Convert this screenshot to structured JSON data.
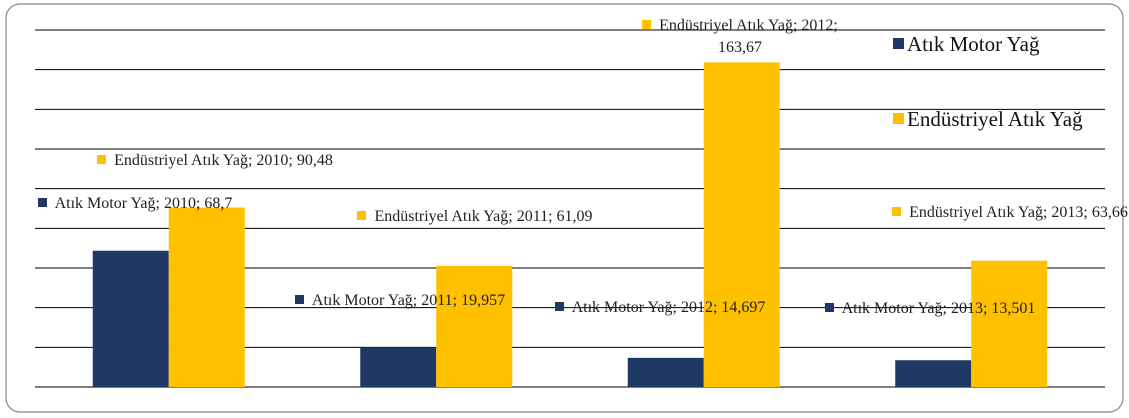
{
  "chart_data": {
    "type": "bar",
    "categories": [
      "2010",
      "2011",
      "2012",
      "2013"
    ],
    "series": [
      {
        "name": "Atık Motor Yağ",
        "color": "#1f3864",
        "values": [
          68.7,
          19.957,
          14.697,
          13.501
        ],
        "value_labels": [
          "Atık Motor Yağ; 2010; 68,7",
          "Atık Motor Yağ; 2011; 19,957",
          "Atık Motor Yağ; 2012; 14,697",
          "Atık Motor Yağ; 2013; 13,501"
        ]
      },
      {
        "name": "Endüstriyel Atık Yağ",
        "color": "#ffc000",
        "values": [
          90.48,
          61.09,
          163.67,
          63.66
        ],
        "value_labels": [
          "Endüstriyel Atık Yağ; 2010; 90,48",
          "Endüstriyel Atık Yağ; 2011; 61,09",
          "Endüstriyel Atık Yağ; 2012; 163,67",
          "Endüstriyel Atık Yağ; 2013; 63,66"
        ]
      }
    ],
    "ylim": [
      0,
      180
    ],
    "yticks": [
      0,
      20,
      40,
      60,
      80,
      100,
      120,
      140,
      160,
      180
    ],
    "grid": true,
    "legend": "right"
  }
}
